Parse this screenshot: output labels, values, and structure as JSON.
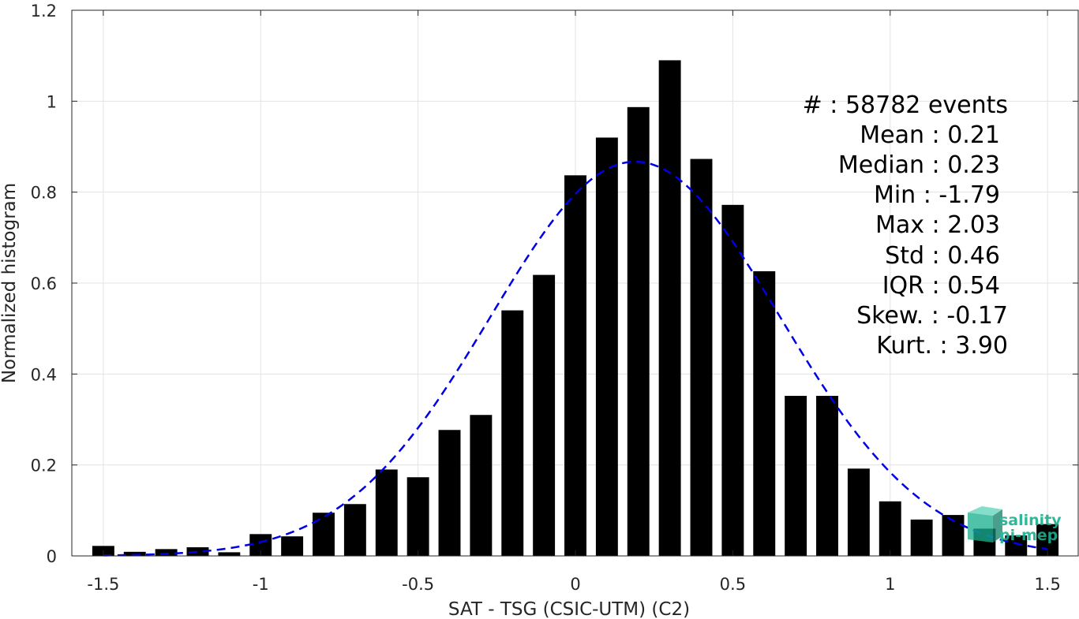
{
  "chart_data": {
    "type": "bar",
    "xlabel": "SAT - TSG (CSIC-UTM) (C2)",
    "ylabel": "Normalized histogram",
    "xlim": [
      -1.6,
      1.6
    ],
    "ylim": [
      0,
      1.2
    ],
    "x_ticks": [
      -1.5,
      -1,
      -0.5,
      0,
      0.5,
      1,
      1.5
    ],
    "x_tick_labels": [
      "-1.5",
      "-1",
      "-0.5",
      "0",
      "0.5",
      "1",
      "1.5"
    ],
    "y_ticks": [
      0,
      0.2,
      0.4,
      0.6,
      0.8,
      1,
      1.2
    ],
    "y_tick_labels": [
      "0",
      "0.2",
      "0.4",
      "0.6",
      "0.8",
      "1",
      "1.2"
    ],
    "grid": true,
    "bar_width": 0.07,
    "bar_color": "#000000",
    "x": [
      -1.5,
      -1.4,
      -1.3,
      -1.2,
      -1.1,
      -1.0,
      -0.9,
      -0.8,
      -0.7,
      -0.6,
      -0.5,
      -0.4,
      -0.3,
      -0.2,
      -0.1,
      0.0,
      0.1,
      0.2,
      0.3,
      0.4,
      0.5,
      0.6,
      0.7,
      0.8,
      0.9,
      1.0,
      1.1,
      1.2,
      1.3,
      1.4,
      1.5
    ],
    "values": [
      0.022,
      0.009,
      0.015,
      0.019,
      0.008,
      0.048,
      0.043,
      0.095,
      0.114,
      0.19,
      0.173,
      0.277,
      0.31,
      0.54,
      0.618,
      0.837,
      0.92,
      0.987,
      1.09,
      0.873,
      0.772,
      0.626,
      0.352,
      0.352,
      0.192,
      0.12,
      0.08,
      0.09,
      0.06,
      0.045,
      0.07
    ],
    "fit_curve": {
      "type": "gaussian",
      "mean": 0.19,
      "std": 0.46,
      "peak": 0.867,
      "color": "#0000e6",
      "style": "dashed",
      "x_range": [
        -1.5,
        1.5
      ]
    },
    "stats": [
      "#  : 58782 events",
      "Mean : 0.21",
      "Median : 0.23",
      "Min : -1.79",
      "Max : 2.03",
      "Std : 0.46",
      "IQR : 0.54",
      "Skew. : -0.17",
      "Kurt. : 3.90"
    ]
  },
  "logo": {
    "line1": "salinity",
    "line2": "pi-mep",
    "color": "#1aaf8f",
    "icon": "salinity-cube-logo"
  }
}
